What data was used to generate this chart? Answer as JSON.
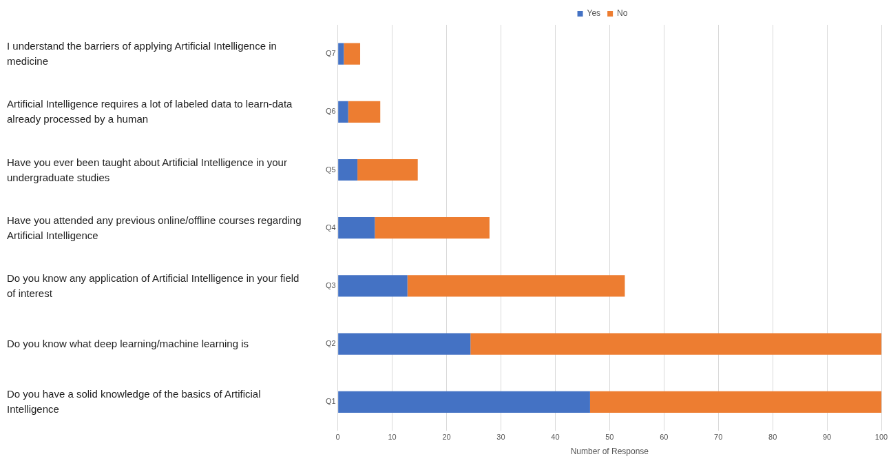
{
  "chart_data": {
    "type": "bar",
    "orientation": "horizontal",
    "stacked": true,
    "categories": [
      "Q7",
      "Q6",
      "Q5",
      "Q4",
      "Q3",
      "Q2",
      "Q1"
    ],
    "series": [
      {
        "name": "Yes",
        "color": "#4472c4",
        "values": [
          1.1,
          1.9,
          3.6,
          6.8,
          12.8,
          24.4,
          46.4
        ]
      },
      {
        "name": "No",
        "color": "#ed7d31",
        "values": [
          3,
          5.9,
          11.1,
          21.1,
          40,
          75.6,
          53.6
        ]
      }
    ],
    "xlabel": "Number of Response",
    "xlim": [
      0,
      100
    ],
    "xticks": [
      0,
      10,
      20,
      30,
      40,
      50,
      60,
      70,
      80,
      90,
      100
    ],
    "grid": "x",
    "legend": "top",
    "annotations": [
      "I understand the barriers of applying Artificial Intelligence in medicine",
      "Artificial Intelligence requires a lot of labeled data to learn-data already processed by a human",
      "Have you ever been taught about Artificial Intelligence in your undergraduate studies",
      "Have you attended any previous online/offline courses regarding Artificial Intelligence",
      "Do you know any application of Artificial Intelligence in your field of interest",
      "Do you know what deep learning/machine learning is",
      "Do you have a solid knowledge of the basics of Artificial Intelligence"
    ]
  }
}
